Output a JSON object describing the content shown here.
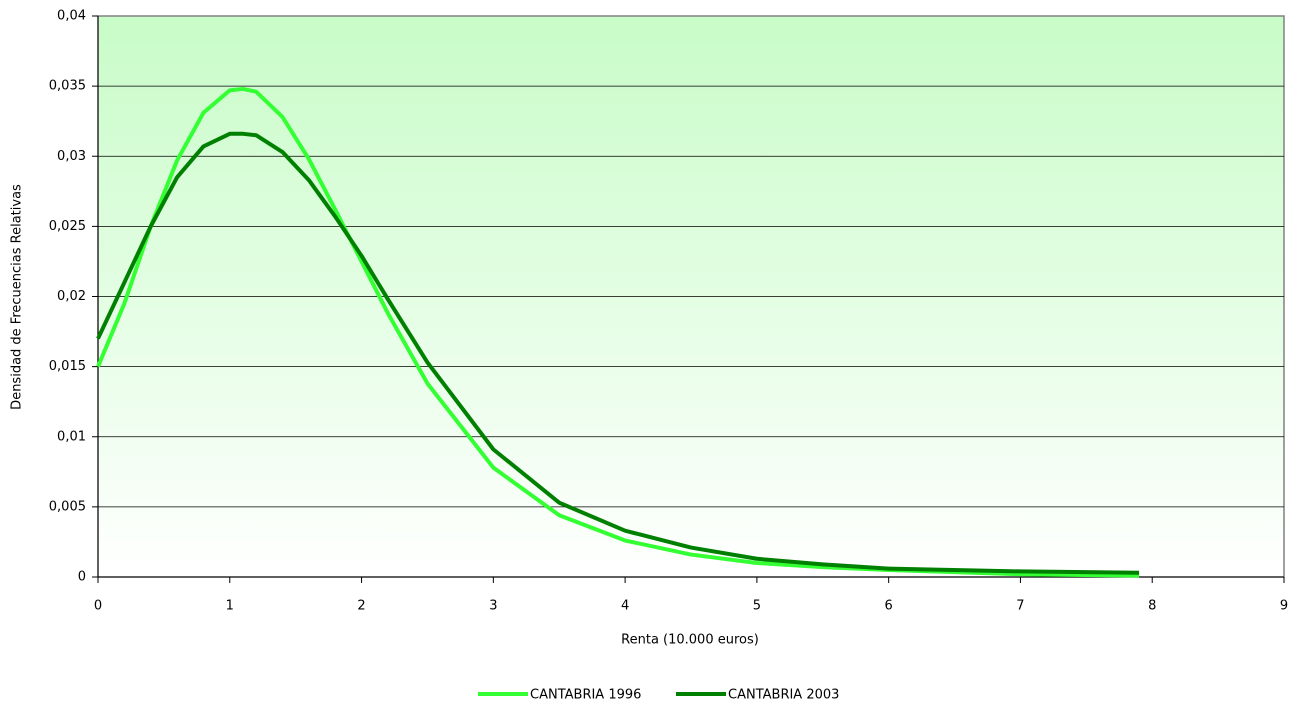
{
  "chart_data": {
    "type": "line",
    "x_label": "Renta (10.000 euros)",
    "y_label": "Densidad de Frecuencias Relativas",
    "x": [
      0,
      0.2,
      0.4,
      0.6,
      0.8,
      1.0,
      1.1,
      1.2,
      1.4,
      1.6,
      1.8,
      2.0,
      2.2,
      2.5,
      3,
      3.5,
      4,
      4.5,
      5,
      5.5,
      6,
      7,
      7.9
    ],
    "series": [
      {
        "name": "CANTABRIA 1996",
        "color": "#33ff33",
        "values": [
          0.015,
          0.0195,
          0.025,
          0.0297,
          0.0331,
          0.0347,
          0.0348,
          0.0346,
          0.0328,
          0.0298,
          0.0262,
          0.0225,
          0.0188,
          0.0138,
          0.0078,
          0.0044,
          0.0026,
          0.0016,
          0.001,
          0.0007,
          0.0005,
          0.0002,
          0.0001
        ]
      },
      {
        "name": "CANTABRIA 2003",
        "color": "#008000",
        "values": [
          0.017,
          0.021,
          0.025,
          0.0285,
          0.0307,
          0.0316,
          0.0316,
          0.0315,
          0.0303,
          0.0283,
          0.0257,
          0.0229,
          0.0198,
          0.0153,
          0.0091,
          0.0053,
          0.0033,
          0.0021,
          0.0013,
          0.0009,
          0.0006,
          0.0004,
          0.0003
        ]
      }
    ],
    "xlim": [
      0,
      9
    ],
    "xticks": [
      0,
      1,
      2,
      3,
      4,
      5,
      6,
      7,
      8,
      9
    ],
    "ylim": [
      0,
      0.04
    ],
    "yticks": [
      0,
      {
        "value": 0.005,
        "label": "0,005"
      },
      {
        "value": 0.01,
        "label": "0,01"
      },
      {
        "value": 0.015,
        "label": "0,015"
      },
      {
        "value": 0.02,
        "label": "0,02"
      },
      {
        "value": 0.025,
        "label": "0,025"
      },
      {
        "value": 0.03,
        "label": "0,03"
      },
      {
        "value": 0.035,
        "label": "0,035"
      },
      {
        "value": 0.04,
        "label": "0,04"
      }
    ],
    "grid": true,
    "legend": "bottom"
  }
}
